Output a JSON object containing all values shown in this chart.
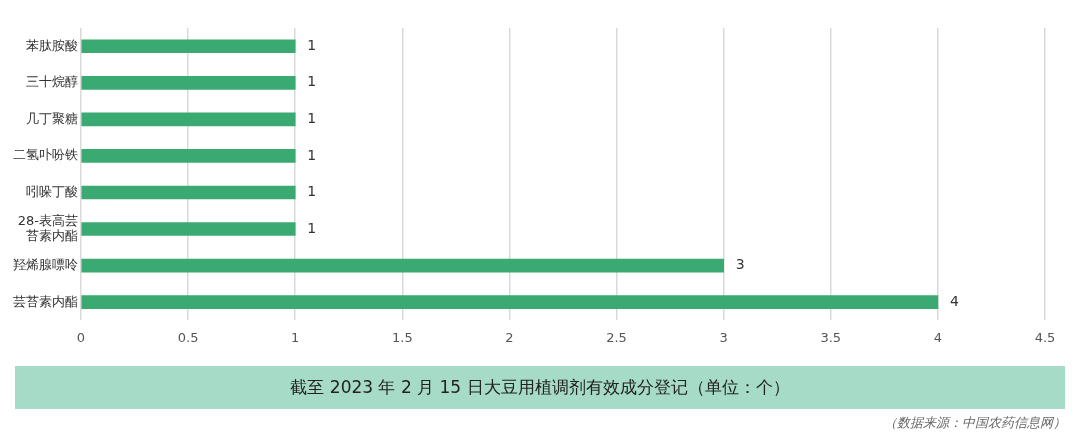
{
  "chart_data": {
    "type": "bar",
    "orientation": "horizontal",
    "title": "截至 2023 年 2 月 15 日大豆用植调剂有效成分登记（单位：个）",
    "categories": [
      "苯肽胺酸",
      "三十烷醇",
      "几丁聚糖",
      "二氢卟吩铁",
      "吲哚丁酸",
      "28-表高芸苔素内酯",
      "羟烯腺嘌呤",
      "芸苔素内酯"
    ],
    "series": [
      {
        "color": "#3aaa72",
        "values": [
          1,
          1,
          1,
          1,
          1,
          1,
          3,
          4
        ]
      }
    ],
    "xlim": [
      0,
      4.5
    ],
    "xticks": [
      0,
      0.5,
      1,
      1.5,
      2,
      2.5,
      3,
      3.5,
      4,
      4.5
    ],
    "grid": "x",
    "legend": false,
    "data_labels": true,
    "annotations": [
      "（数据来源：中国农药信息网）"
    ]
  }
}
